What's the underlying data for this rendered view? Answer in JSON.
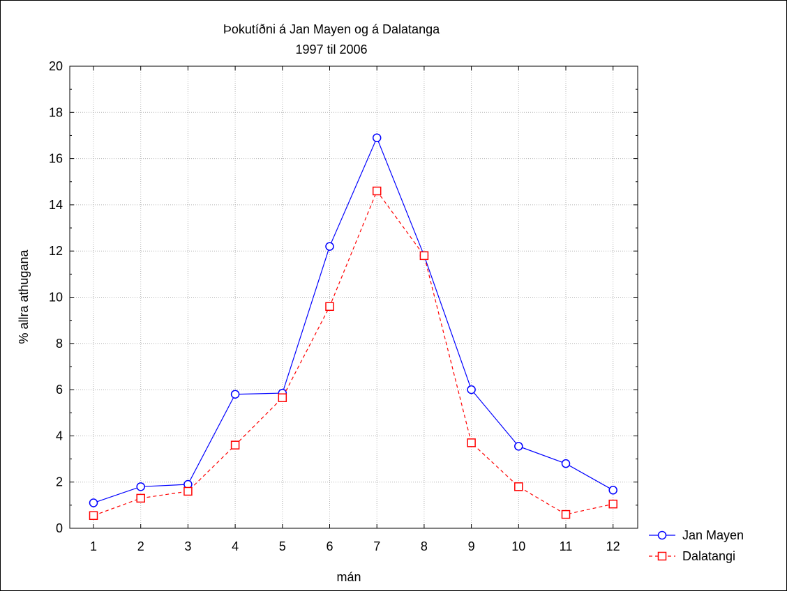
{
  "chart_data": {
    "type": "line",
    "title": "Þokutíðni á Jan Mayen og á Dalatanga",
    "subtitle": "1997 til 2006",
    "xlabel": "mán",
    "ylabel": "% allra athugana",
    "categories": [
      "1",
      "2",
      "3",
      "4",
      "5",
      "6",
      "7",
      "8",
      "9",
      "10",
      "11",
      "12"
    ],
    "ylim": [
      0,
      20
    ],
    "yticks": [
      "0",
      "2",
      "4",
      "6",
      "8",
      "10",
      "12",
      "14",
      "16",
      "18",
      "20"
    ],
    "grid": true,
    "legend_position": "bottom-right",
    "series": [
      {
        "name": "Jan Mayen",
        "color": "#0000ff",
        "marker": "circle",
        "line_style": "solid",
        "values": [
          1.1,
          1.8,
          1.9,
          5.8,
          5.85,
          12.2,
          16.9,
          11.8,
          6.0,
          3.55,
          2.8,
          1.65
        ]
      },
      {
        "name": "Dalatangi",
        "color": "#ff0000",
        "marker": "square",
        "line_style": "dashed",
        "values": [
          0.55,
          1.3,
          1.6,
          3.6,
          5.65,
          9.6,
          14.6,
          11.8,
          3.7,
          1.8,
          0.6,
          1.05
        ]
      }
    ]
  }
}
